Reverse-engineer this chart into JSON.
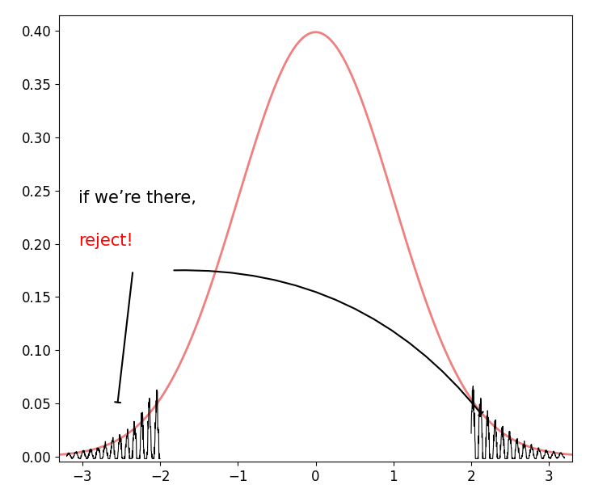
{
  "xlim": [
    -3.3,
    3.3
  ],
  "ylim": [
    -0.005,
    0.415
  ],
  "xticks": [
    -3,
    -2,
    -1,
    0,
    1,
    2,
    3
  ],
  "yticks": [
    0.0,
    0.05,
    0.1,
    0.15,
    0.2,
    0.25,
    0.3,
    0.35,
    0.4
  ],
  "normal_color": "#f08080",
  "noisy_color": "#000000",
  "annotation_text_black": "if we’re there,",
  "annotation_text_red": "reject!",
  "annotation_color_black": "#000000",
  "annotation_color_red": "#ff0000",
  "annotation_fontsize": 15,
  "noise_seed": 12,
  "figsize": [
    7.3,
    6.21
  ],
  "dpi": 100
}
